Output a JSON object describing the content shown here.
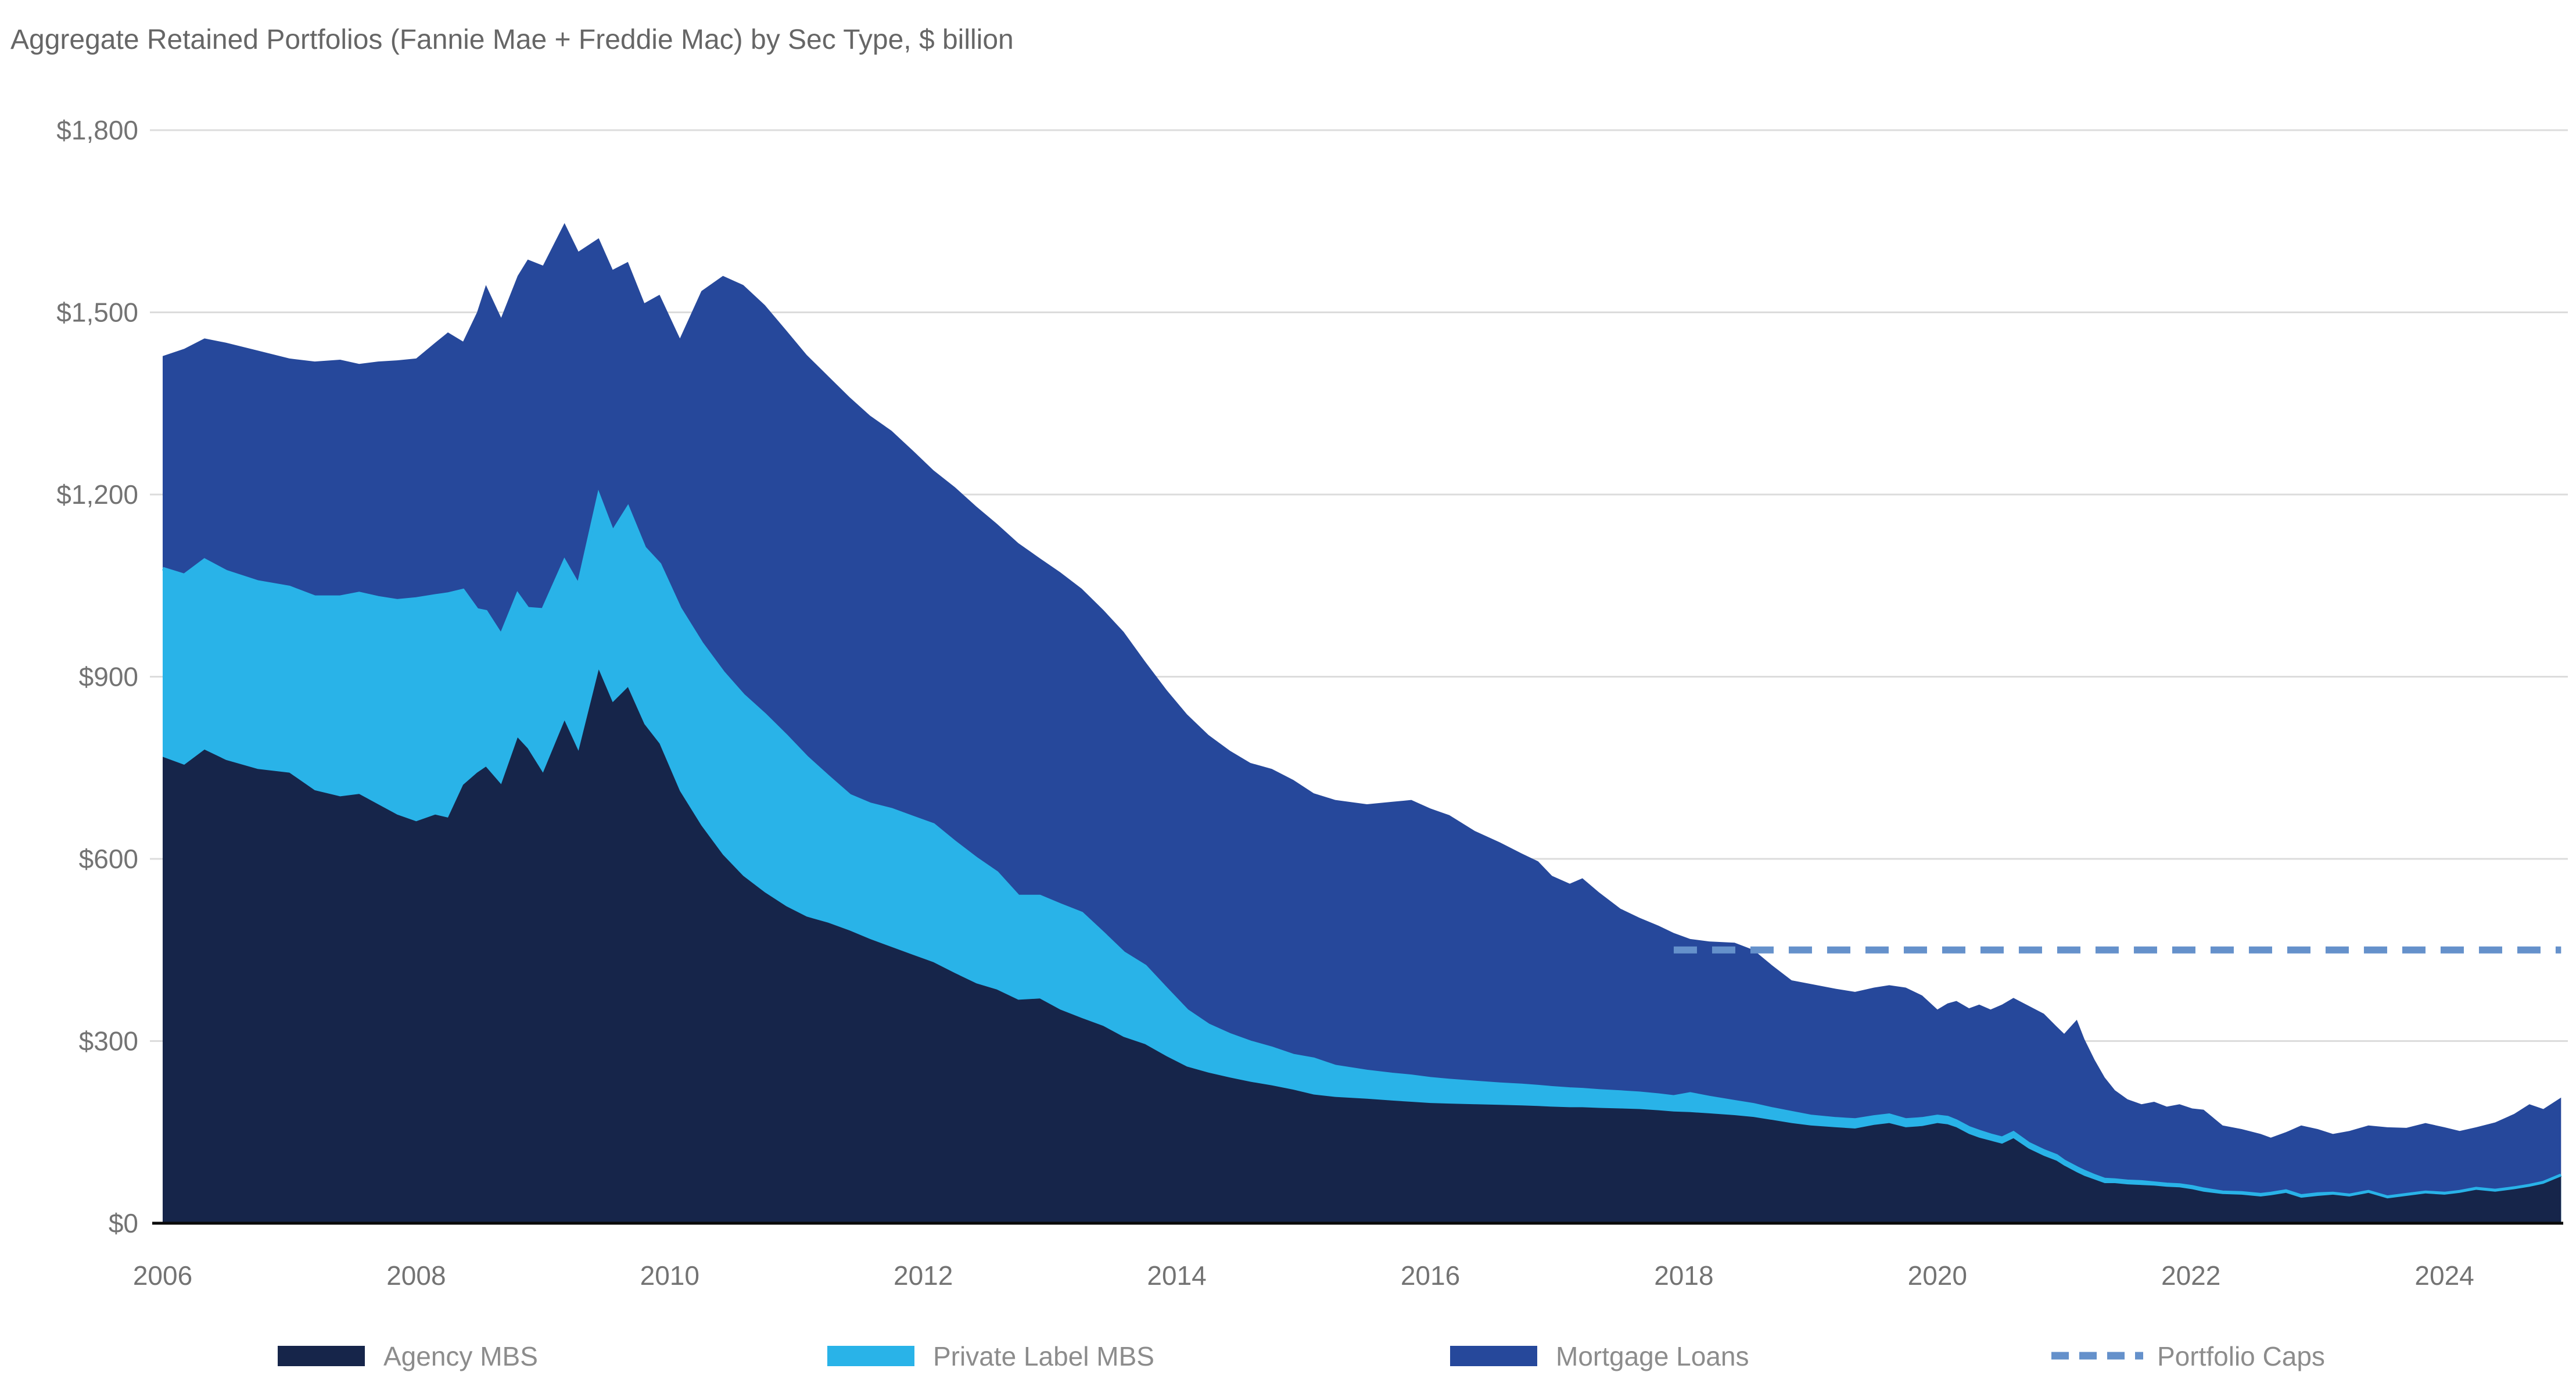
{
  "chart_data": {
    "type": "area",
    "stacked": true,
    "title": "Aggregate Retained Portfolios (Fannie Mae + Freddie Mac) by Sec Type, $ billion",
    "unit": "$ billion",
    "grid": "horizontal",
    "legend_position": "bottom",
    "x": [
      2006.0,
      2006.17,
      2006.33,
      2006.5,
      2006.75,
      2007.0,
      2007.2,
      2007.4,
      2007.55,
      2007.7,
      2007.85,
      2008.0,
      2008.15,
      2008.25,
      2008.37,
      2008.48,
      2008.55,
      2008.67,
      2008.8,
      2008.88,
      2009.0,
      2009.17,
      2009.28,
      2009.44,
      2009.55,
      2009.67,
      2009.8,
      2009.92,
      2010.08,
      2010.25,
      2010.42,
      2010.58,
      2010.75,
      2010.92,
      2011.08,
      2011.25,
      2011.42,
      2011.58,
      2011.75,
      2011.92,
      2012.08,
      2012.25,
      2012.42,
      2012.58,
      2012.75,
      2012.92,
      2013.08,
      2013.25,
      2013.42,
      2013.58,
      2013.75,
      2013.92,
      2014.08,
      2014.25,
      2014.42,
      2014.58,
      2014.75,
      2014.92,
      2015.08,
      2015.25,
      2015.5,
      2015.7,
      2015.85,
      2016.0,
      2016.15,
      2016.35,
      2016.55,
      2016.72,
      2016.85,
      2016.96,
      2017.1,
      2017.2,
      2017.33,
      2017.5,
      2017.65,
      2017.8,
      2017.92,
      2018.05,
      2018.2,
      2018.4,
      2018.55,
      2018.7,
      2018.85,
      2019.0,
      2019.2,
      2019.35,
      2019.5,
      2019.62,
      2019.75,
      2019.88,
      2020.0,
      2020.08,
      2020.15,
      2020.25,
      2020.33,
      2020.42,
      2020.51,
      2020.6,
      2020.72,
      2020.84,
      2020.94,
      2021.0,
      2021.1,
      2021.16,
      2021.24,
      2021.32,
      2021.4,
      2021.5,
      2021.61,
      2021.71,
      2021.81,
      2021.91,
      2022.01,
      2022.1,
      2022.25,
      2022.4,
      2022.55,
      2022.63,
      2022.75,
      2022.87,
      2023.0,
      2023.12,
      2023.25,
      2023.4,
      2023.55,
      2023.7,
      2023.85,
      2024.0,
      2024.12,
      2024.25,
      2024.4,
      2024.55,
      2024.67,
      2024.78,
      2024.92
    ],
    "series": [
      {
        "name": "Agency MBS",
        "color": "#16254A",
        "values": [
          768,
          755,
          780,
          763,
          748,
          742,
          713,
          703,
          707,
          690,
          673,
          662,
          673,
          668,
          722,
          742,
          752,
          723,
          800,
          782,
          742,
          828,
          778,
          912,
          858,
          883,
          822,
          790,
          712,
          655,
          607,
          572,
          545,
          522,
          505,
          495,
          482,
          468,
          455,
          442,
          430,
          412,
          395,
          385,
          368,
          370,
          352,
          338,
          325,
          307,
          295,
          275,
          258,
          248,
          240,
          233,
          227,
          220,
          212,
          208,
          205,
          202,
          200,
          198,
          197,
          196,
          195,
          194,
          193,
          192,
          191,
          191,
          190,
          189,
          188,
          186,
          184,
          183,
          181,
          178,
          175,
          170,
          165,
          161,
          158,
          156,
          162,
          165,
          158,
          160,
          165,
          163,
          158,
          147,
          141,
          136,
          131,
          140,
          123,
          111,
          103,
          95,
          84,
          78,
          72,
          66,
          66,
          64,
          63,
          62,
          60,
          59,
          56,
          52,
          48,
          47,
          44,
          46,
          50,
          42,
          45,
          47,
          44,
          50,
          41,
          45,
          49,
          47,
          50,
          55,
          52,
          56,
          60,
          65,
          77
        ]
      },
      {
        "name": "Private Label MBS",
        "color": "#29B3E8",
        "values": [
          310,
          312,
          312,
          310,
          308,
          305,
          318,
          328,
          330,
          340,
          352,
          366,
          360,
          368,
          320,
          268,
          255,
          245,
          235,
          230,
          268,
          262,
          272,
          286,
          280,
          295,
          290,
          295,
          300,
          300,
          300,
          297,
          292,
          280,
          262,
          240,
          222,
          222,
          226,
          226,
          226,
          215,
          205,
          192,
          170,
          168,
          172,
          172,
          152,
          138,
          128,
          110,
          92,
          78,
          70,
          65,
          61,
          56,
          58,
          50,
          45,
          43,
          42,
          40,
          38,
          36,
          34,
          33,
          32,
          31,
          30,
          29,
          28,
          27,
          26,
          25,
          24,
          30,
          26,
          22,
          20,
          18,
          17,
          15,
          14,
          14,
          13,
          13,
          12,
          12,
          11,
          11,
          10,
          10,
          10,
          9,
          9,
          9,
          8,
          8,
          8,
          7,
          7,
          7,
          6,
          6,
          5,
          5,
          5,
          4,
          4,
          4,
          4,
          4,
          3,
          3,
          3,
          3,
          3,
          3,
          3,
          2,
          2,
          2,
          2,
          2,
          2,
          2,
          2,
          2,
          2,
          2,
          2,
          2,
          2
        ]
      },
      {
        "name": "Mortgage Loans",
        "color": "#26489B",
        "values": [
          350,
          373,
          365,
          377,
          381,
          377,
          388,
          391,
          378,
          389,
          396,
          396,
          417,
          431,
          410,
          490,
          538,
          523,
          525,
          575,
          567,
          557,
          550,
          424,
          432,
          405,
          403,
          444,
          445,
          580,
          653,
          676,
          675,
          668,
          663,
          660,
          656,
          640,
          624,
          604,
          584,
          585,
          580,
          575,
          582,
          557,
          548,
          535,
          533,
          529,
          502,
          493,
          488,
          478,
          468,
          460,
          460,
          454,
          438,
          439,
          440,
          449,
          455,
          445,
          437,
          414,
          398,
          382,
          371,
          349,
          338,
          348,
          327,
          302,
          289,
          279,
          270,
          255,
          257,
          262,
          255,
          236,
          218,
          218,
          214,
          211,
          213,
          214,
          218,
          203,
          176,
          188,
          198,
          197,
          209,
          207,
          220,
          222,
          227,
          226,
          213,
          210,
          244,
          218,
          191,
          168,
          148,
          135,
          128,
          134,
          128,
          133,
          129,
          131,
          110,
          105,
          100,
          92,
          97,
          116,
          107,
          98,
          106,
          109,
          115,
          110,
          114,
          109,
          100,
          101,
          112,
          122,
          134,
          121,
          128
        ]
      }
    ],
    "caps_line": {
      "name": "Portfolio Caps",
      "color": "#6591CB",
      "style": "dashed",
      "value": 450,
      "x_start": 2017.92,
      "x_end": 2024.92
    },
    "x_axis": {
      "range": [
        2006,
        2025.2
      ],
      "ticks": [
        {
          "value": 2006,
          "label": "2006"
        },
        {
          "value": 2008,
          "label": "2008"
        },
        {
          "value": 2010,
          "label": "2010"
        },
        {
          "value": 2012,
          "label": "2012"
        },
        {
          "value": 2014,
          "label": "2014"
        },
        {
          "value": 2016,
          "label": "2016"
        },
        {
          "value": 2018,
          "label": "2018"
        },
        {
          "value": 2020,
          "label": "2020"
        },
        {
          "value": 2022,
          "label": "2022"
        },
        {
          "value": 2024,
          "label": "2024"
        }
      ]
    },
    "y_axis": {
      "range": [
        0,
        1800
      ],
      "ticks": [
        {
          "value": 0,
          "label": "$0"
        },
        {
          "value": 300,
          "label": "$300"
        },
        {
          "value": 600,
          "label": "$600"
        },
        {
          "value": 900,
          "label": "$900"
        },
        {
          "value": 1200,
          "label": "$1,200"
        },
        {
          "value": 1500,
          "label": "$1,500"
        },
        {
          "value": 1800,
          "label": "$1,800"
        }
      ]
    },
    "legend": [
      {
        "label": "Agency MBS",
        "swatch": "rect",
        "color": "#16254A"
      },
      {
        "label": "Private Label MBS",
        "swatch": "rect",
        "color": "#29B3E8"
      },
      {
        "label": "Mortgage Loans",
        "swatch": "rect",
        "color": "#26489B"
      },
      {
        "label": "Portfolio Caps",
        "swatch": "dashed-line",
        "color": "#6591CB"
      }
    ],
    "colors": {
      "gridline": "#DCDCDC",
      "axis_line": "#0A0A0A",
      "title_text": "#666666",
      "axis_text": "#737373",
      "legend_text": "#8C8C8C",
      "background": "#FFFFFF"
    }
  }
}
